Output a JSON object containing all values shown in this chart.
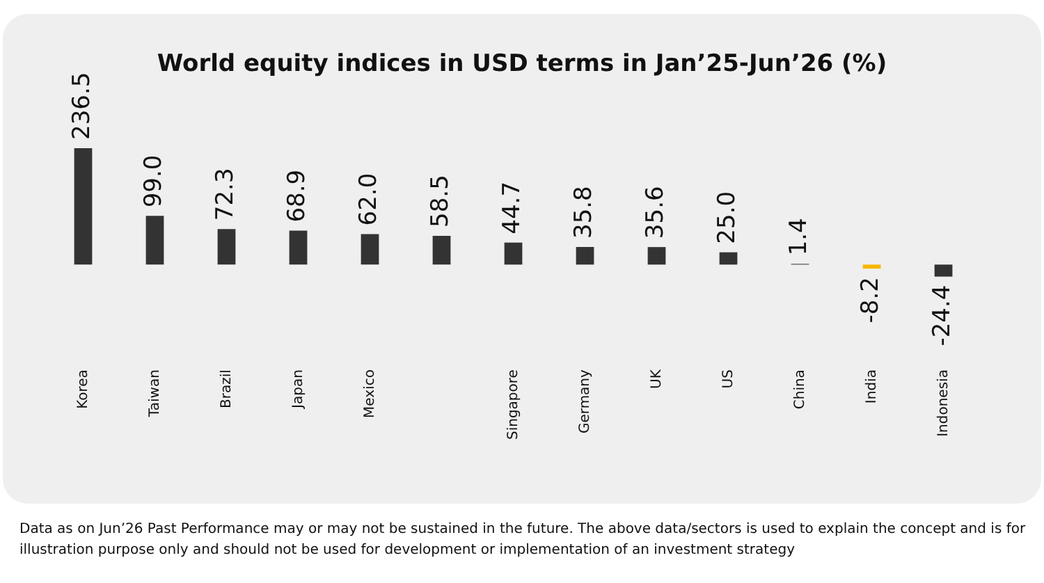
{
  "chart_data": {
    "type": "bar",
    "title": "World equity indices in USD terms in Jan’25-Jun’26 (%)",
    "categories": [
      "Korea",
      "Taiwan",
      "Brazil",
      "Japan",
      "Mexico",
      null,
      "Singapore",
      "Germany",
      "UK",
      "US",
      "China",
      "India",
      "Indonesia"
    ],
    "values": [
      236.5,
      99.0,
      72.3,
      68.9,
      62.0,
      58.5,
      44.7,
      35.8,
      35.6,
      25.0,
      1.4,
      -8.2,
      -24.4
    ],
    "colors": [
      "#333333",
      "#333333",
      "#333333",
      "#333333",
      "#333333",
      "#333333",
      "#333333",
      "#333333",
      "#333333",
      "#333333",
      "#333333",
      "#f5b800",
      "#333333"
    ],
    "value_labels": [
      "236.5",
      "99.0",
      "72.3",
      "68.9",
      "62.0",
      "58.5",
      "44.7",
      "35.8",
      "35.6",
      "25.0",
      "1.4",
      "-8.2",
      "-24.4"
    ],
    "annotations": [
      "Data as on Jun’26 Past Performance may or may not be sustained in the future. The above data/sectors is used to explain the concept and is for illustration purpose only and should not be used for development or implementation of an investment strategy"
    ],
    "grid": false,
    "legend": false
  }
}
